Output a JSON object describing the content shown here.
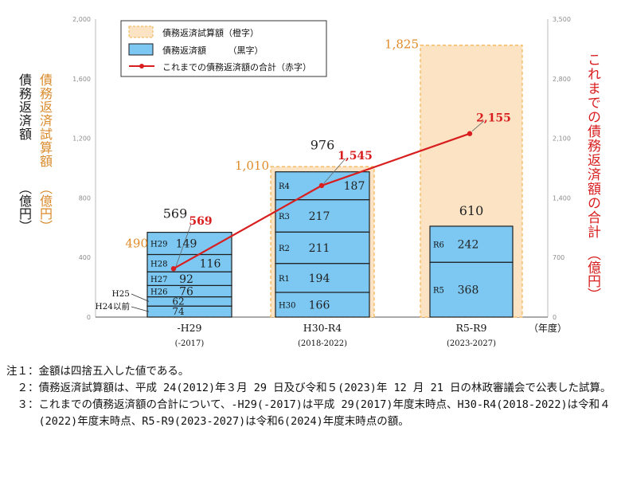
{
  "labels": {
    "ylabel_left_black": "債務返済額",
    "ylabel_left_black_unit": "（億円）",
    "ylabel_left_orange": "債務返済試算額",
    "ylabel_left_orange_unit": "（億円）",
    "ylabel_right": "これまでの債務返済額の合計",
    "ylabel_right_unit": "（億円）",
    "x_unit": "（年度）"
  },
  "legend": {
    "estimate": "債務返済試算額（橙字）",
    "actual": "債務返済額　　　（黒字）",
    "cumulative": "これまでの債務返済額の合計（赤字）"
  },
  "colors": {
    "estimate_fill": "#fbe3c4",
    "estimate_border": "#f2b24e",
    "estimate_text": "#e08a28",
    "actual_fill": "#7cc8f2",
    "actual_border": "#1e1e1e",
    "cumulative": "#d81e1e",
    "axis_text": "#8c8c8c"
  },
  "chart_data": {
    "type": "bar",
    "left_axis": {
      "ylim": [
        0,
        2000
      ],
      "ticks": [
        "0",
        "400",
        "800",
        "1,200",
        "1,600",
        "2,000"
      ]
    },
    "right_axis": {
      "ylim": [
        0,
        3500
      ],
      "ticks": [
        "0",
        "700",
        "1,400",
        "2,100",
        "2,800",
        "3,500"
      ]
    },
    "grid": false,
    "legend_position": "top-left",
    "groups": [
      {
        "label": "-H29",
        "sublabel": "(-2017)",
        "estimate": 490,
        "estimate_label": "490",
        "total": 569,
        "total_label": "569",
        "segments": [
          {
            "year": "H24以前",
            "value": 74,
            "value_label": "74",
            "outside": true
          },
          {
            "year": "H25",
            "value": 62,
            "value_label": "62",
            "outside": true
          },
          {
            "year": "H26",
            "value": 76,
            "value_label": "76"
          },
          {
            "year": "H27",
            "value": 92,
            "value_label": "92"
          },
          {
            "year": "H28",
            "value": 116,
            "value_label": "116"
          },
          {
            "year": "H29",
            "value": 149,
            "value_label": "149"
          }
        ],
        "cumulative": 569,
        "cumulative_label": "569"
      },
      {
        "label": "H30-R4",
        "sublabel": "(2018-2022)",
        "estimate": 1010,
        "estimate_label": "1,010",
        "total": 976,
        "total_label": "976",
        "segments": [
          {
            "year": "H30",
            "value": 166,
            "value_label": "166"
          },
          {
            "year": "R1",
            "value": 194,
            "value_label": "194"
          },
          {
            "year": "R2",
            "value": 211,
            "value_label": "211"
          },
          {
            "year": "R3",
            "value": 217,
            "value_label": "217"
          },
          {
            "year": "R4",
            "value": 187,
            "value_label": "187"
          }
        ],
        "cumulative": 1545,
        "cumulative_label": "1,545"
      },
      {
        "label": "R5-R9",
        "sublabel": "(2023-2027)",
        "estimate": 1825,
        "estimate_label": "1,825",
        "total": 610,
        "total_label": "610",
        "segments": [
          {
            "year": "R5",
            "value": 368,
            "value_label": "368"
          },
          {
            "year": "R6",
            "value": 242,
            "value_label": "242"
          }
        ],
        "cumulative": 2155,
        "cumulative_label": "2,155"
      }
    ]
  },
  "notes": [
    {
      "head": "注１：",
      "text": "金額は四捨五入した値である。"
    },
    {
      "head": "　２：",
      "text": "債務返済試算額は、平成 24(2012)年３月 29 日及び令和５(2023)年 12 月 21 日の林政審議会で公表した試算。"
    },
    {
      "head": "　３：",
      "text": "これまでの債務返済額の合計について、-H29(-2017)は平成 29(2017)年度末時点、H30-R4(2018-2022)は令和４(2022)年度末時点、R5-R9(2023-2027)は令和6(2024)年度末時点の額。"
    }
  ]
}
